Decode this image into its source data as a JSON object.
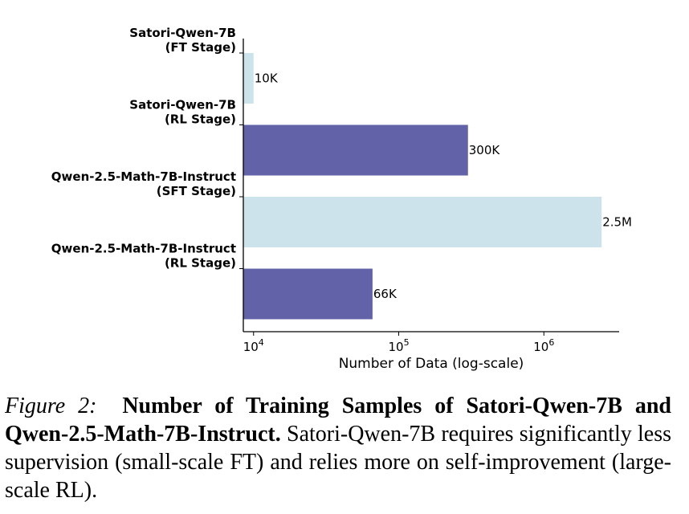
{
  "chart_data": {
    "type": "bar",
    "orientation": "horizontal",
    "categories": [
      [
        "Satori-Qwen-7B",
        "(FT Stage)"
      ],
      [
        "Satori-Qwen-7B",
        "(RL Stage)"
      ],
      [
        "Qwen-2.5-Math-7B-Instruct",
        "(SFT Stage)"
      ],
      [
        "Qwen-2.5-Math-7B-Instruct",
        "(RL Stage)"
      ]
    ],
    "values": [
      10000,
      300000,
      2500000,
      66000
    ],
    "value_labels": [
      "10K",
      "300K",
      "2.5M",
      "66K"
    ],
    "colors": [
      "#cde3ec",
      "#6262a9",
      "#cde3ec",
      "#6262a9"
    ],
    "xlabel": "Number of Data (log-scale)",
    "xscale": "log",
    "xlim": [
      8500,
      3300000
    ],
    "xticks": [
      {
        "value": 10000,
        "base": "10",
        "exp": "4"
      },
      {
        "value": 100000,
        "base": "10",
        "exp": "5"
      },
      {
        "value": 1000000,
        "base": "10",
        "exp": "6"
      }
    ],
    "grid": false
  },
  "caption": {
    "label": "Figure 2:",
    "title": "Number of Training Samples of Satori-Qwen-7B and Qwen-2.5-Math-7B-Instruct.",
    "text": "Satori-Qwen-7B requires significantly less supervision (small-scale FT) and relies more on self-improvement (large-scale RL)."
  }
}
